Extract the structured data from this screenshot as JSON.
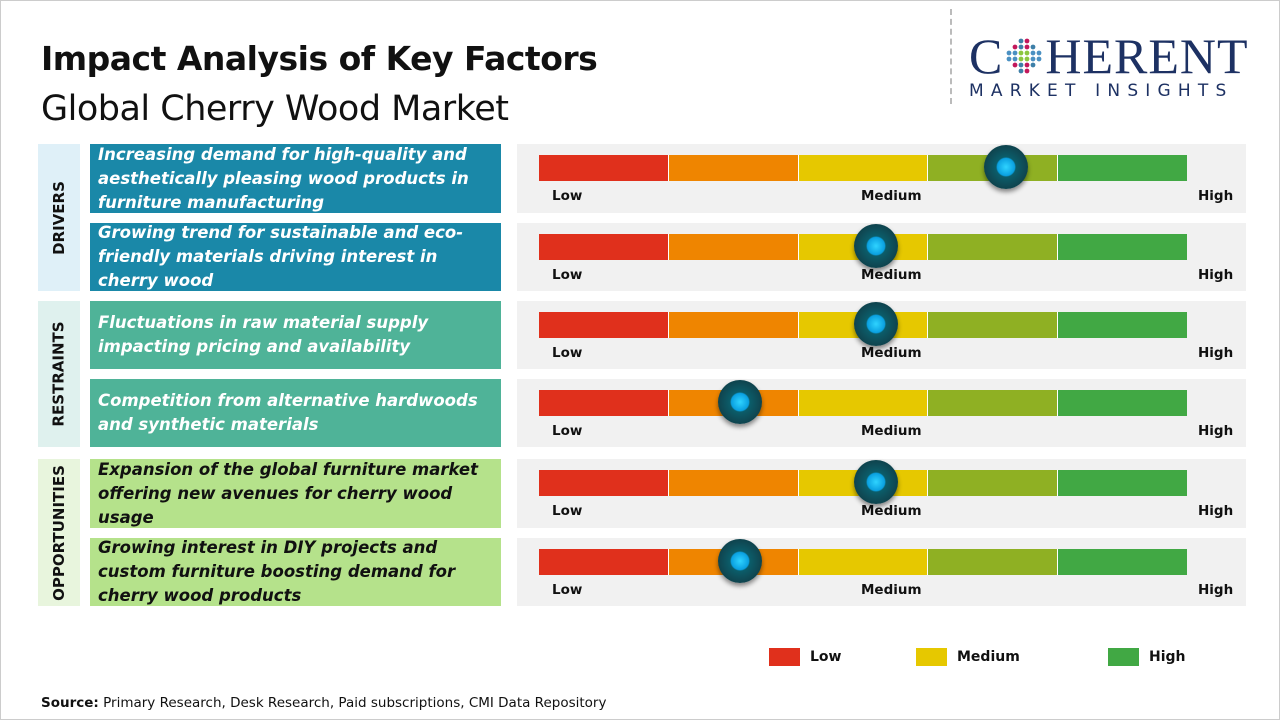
{
  "header": {
    "title": "Impact Analysis of Key Factors",
    "subtitle": "Global Cherry Wood Market"
  },
  "logo": {
    "main_left": "C",
    "main_right": "HERENT",
    "sub": "MARKET INSIGHTS"
  },
  "scale_labels": {
    "low": "Low",
    "medium": "Medium",
    "high": "High"
  },
  "scale_colors": [
    "#e0301c",
    "#ef8500",
    "#e6c800",
    "#8fb023",
    "#41a844"
  ],
  "categories": [
    {
      "label": "DRIVERS",
      "label_bg": "#dff0f8",
      "box_color": "#1a88a8",
      "text_color": "#ffffff"
    },
    {
      "label": "RESTRAINTS",
      "label_bg": "#dff1ee",
      "box_color": "#4fb398",
      "text_color": "#ffffff"
    },
    {
      "label": "OPPORTUNITIES",
      "label_bg": "#e8f5dd",
      "box_color": "#b5e28b",
      "text_color": "#111111"
    }
  ],
  "factors": [
    {
      "text": "Increasing demand for high-quality and aesthetically pleasing wood products in furniture manufacturing",
      "impact": 0.72
    },
    {
      "text": "Growing trend for sustainable and eco-friendly materials driving interest in cherry wood",
      "impact": 0.52
    },
    {
      "text": "Fluctuations in raw material supply impacting pricing and availability",
      "impact": 0.52
    },
    {
      "text": "Competition from alternative hardwoods and synthetic materials",
      "impact": 0.31
    },
    {
      "text": "Expansion of the global furniture market offering new avenues for cherry wood usage",
      "impact": 0.52
    },
    {
      "text": "Growing interest in DIY projects and custom furniture boosting demand for cherry wood products",
      "impact": 0.31
    }
  ],
  "legend": [
    {
      "label": "Low",
      "color": "#e0301c"
    },
    {
      "label": "Medium",
      "color": "#e6c800"
    },
    {
      "label": "High",
      "color": "#41a844"
    }
  ],
  "source": {
    "label": "Source:",
    "text": " Primary Research, Desk Research, Paid subscriptions, CMI Data Repository"
  }
}
